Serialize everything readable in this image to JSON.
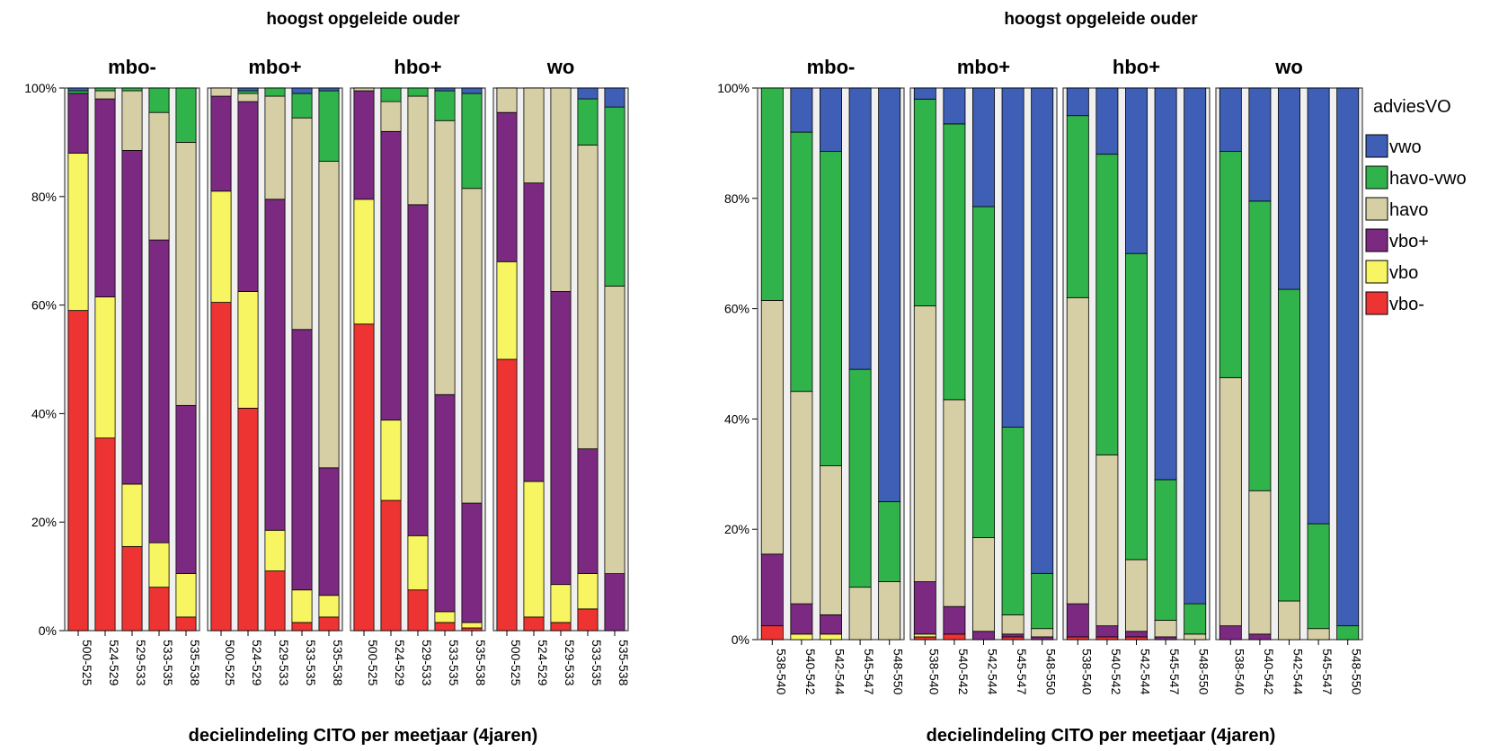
{
  "legend": {
    "title": "adviesVO",
    "colors": {
      "vwo": "#3e5fb5",
      "havo-vwo": "#31b34b",
      "havo": "#d6cfa5",
      "vbo+": "#7c2a81",
      "vbo": "#f7f562",
      "vbo-": "#ee3333"
    }
  },
  "chart_data": [
    {
      "type": "bar",
      "stacked": true,
      "title": "hoogst opgeleide ouder",
      "xlabel": "decielindeling CITO per meetjaar (4jaren)",
      "ylabel": "",
      "ylim": [
        0,
        100
      ],
      "yticks": [
        "0%",
        "20%",
        "40%",
        "60%",
        "80%",
        "100%"
      ],
      "categories": [
        "500-525",
        "524-529",
        "529-533",
        "533-535",
        "535-538"
      ],
      "stack_order": [
        "vbo-",
        "vbo",
        "vbo+",
        "havo",
        "havo-vwo",
        "vwo"
      ],
      "panels": [
        {
          "name": "mbo-",
          "bars": [
            {
              "vbo-": 59,
              "vbo": 29,
              "vbo+": 11,
              "havo": 0,
              "havo-vwo": 0.5,
              "vwo": 0.5
            },
            {
              "vbo-": 35.5,
              "vbo": 26,
              "vbo+": 36.5,
              "havo": 1.5,
              "havo-vwo": 0.5,
              "vwo": 0
            },
            {
              "vbo-": 15.5,
              "vbo": 11.5,
              "vbo+": 61.5,
              "havo": 11,
              "havo-vwo": 0.5,
              "vwo": 0
            },
            {
              "vbo-": 8,
              "vbo": 8.2,
              "vbo+": 55.8,
              "havo": 23.5,
              "havo-vwo": 4.5,
              "vwo": 0
            },
            {
              "vbo-": 2.5,
              "vbo": 8,
              "vbo+": 31,
              "havo": 48.5,
              "havo-vwo": 10,
              "vwo": 0
            }
          ]
        },
        {
          "name": "mbo+",
          "bars": [
            {
              "vbo-": 60.5,
              "vbo": 20.5,
              "vbo+": 17.5,
              "havo": 1.5,
              "havo-vwo": 0,
              "vwo": 0
            },
            {
              "vbo-": 41,
              "vbo": 21.5,
              "vbo+": 35,
              "havo": 1.5,
              "havo-vwo": 0.5,
              "vwo": 0.5
            },
            {
              "vbo-": 11,
              "vbo": 7.5,
              "vbo+": 61,
              "havo": 19,
              "havo-vwo": 1.5,
              "vwo": 0
            },
            {
              "vbo-": 1.5,
              "vbo": 6,
              "vbo+": 48,
              "havo": 39,
              "havo-vwo": 4.5,
              "vwo": 1
            },
            {
              "vbo-": 2.5,
              "vbo": 4,
              "vbo+": 23.5,
              "havo": 56.5,
              "havo-vwo": 13,
              "vwo": 0.5
            }
          ]
        },
        {
          "name": "hbo+",
          "bars": [
            {
              "vbo-": 56.5,
              "vbo": 23,
              "vbo+": 20,
              "havo": 0.5,
              "havo-vwo": 0,
              "vwo": 0
            },
            {
              "vbo-": 24,
              "vbo": 14.8,
              "vbo+": 53.2,
              "havo": 5.5,
              "havo-vwo": 2.5,
              "vwo": 0
            },
            {
              "vbo-": 7.5,
              "vbo": 10,
              "vbo+": 61,
              "havo": 20,
              "havo-vwo": 1.5,
              "vwo": 0
            },
            {
              "vbo-": 1.5,
              "vbo": 2,
              "vbo+": 40,
              "havo": 50.5,
              "havo-vwo": 5.5,
              "vwo": 0.5
            },
            {
              "vbo-": 0.5,
              "vbo": 1,
              "vbo+": 22,
              "havo": 58,
              "havo-vwo": 17.5,
              "vwo": 1
            }
          ]
        },
        {
          "name": "wo",
          "bars": [
            {
              "vbo-": 50,
              "vbo": 18,
              "vbo+": 27.5,
              "havo": 4.5,
              "havo-vwo": 0,
              "vwo": 0
            },
            {
              "vbo-": 2.5,
              "vbo": 25,
              "vbo+": 55,
              "havo": 17.5,
              "havo-vwo": 0,
              "vwo": 0
            },
            {
              "vbo-": 1.5,
              "vbo": 7,
              "vbo+": 54,
              "havo": 37.5,
              "havo-vwo": 0,
              "vwo": 0
            },
            {
              "vbo-": 4,
              "vbo": 6.5,
              "vbo+": 23,
              "havo": 56,
              "havo-vwo": 8.5,
              "vwo": 2
            },
            {
              "vbo-": 0,
              "vbo": 0,
              "vbo+": 10.5,
              "havo": 53,
              "havo-vwo": 33,
              "vwo": 3.5
            }
          ]
        }
      ]
    },
    {
      "type": "bar",
      "stacked": true,
      "title": "hoogst opgeleide ouder",
      "xlabel": "decielindeling CITO per meetjaar (4jaren)",
      "ylabel": "",
      "ylim": [
        0,
        100
      ],
      "yticks": [
        "0%",
        "20%",
        "40%",
        "60%",
        "80%",
        "100%"
      ],
      "categories": [
        "538-540",
        "540-542",
        "542-544",
        "545-547",
        "548-550"
      ],
      "stack_order": [
        "vbo-",
        "vbo",
        "vbo+",
        "havo",
        "havo-vwo",
        "vwo"
      ],
      "panels": [
        {
          "name": "mbo-",
          "bars": [
            {
              "vbo-": 2.5,
              "vbo": 0,
              "vbo+": 13,
              "havo": 46,
              "havo-vwo": 38.5,
              "vwo": 0
            },
            {
              "vbo-": 0,
              "vbo": 1,
              "vbo+": 5.5,
              "havo": 38.5,
              "havo-vwo": 47,
              "vwo": 8
            },
            {
              "vbo-": 0,
              "vbo": 1,
              "vbo+": 3.5,
              "havo": 27,
              "havo-vwo": 57,
              "vwo": 11.5
            },
            {
              "vbo-": 0,
              "vbo": 0,
              "vbo+": 0,
              "havo": 9.5,
              "havo-vwo": 39.5,
              "vwo": 51
            },
            {
              "vbo-": 0,
              "vbo": 0,
              "vbo+": 0,
              "havo": 10.5,
              "havo-vwo": 14.5,
              "vwo": 75
            }
          ]
        },
        {
          "name": "mbo+",
          "bars": [
            {
              "vbo-": 0.5,
              "vbo": 0.5,
              "vbo+": 9.5,
              "havo": 50,
              "havo-vwo": 37.5,
              "vwo": 2
            },
            {
              "vbo-": 1,
              "vbo": 0,
              "vbo+": 5,
              "havo": 37.5,
              "havo-vwo": 50,
              "vwo": 6.5
            },
            {
              "vbo-": 0,
              "vbo": 0,
              "vbo+": 1.5,
              "havo": 17,
              "havo-vwo": 60,
              "vwo": 21.5
            },
            {
              "vbo-": 0.5,
              "vbo": 0,
              "vbo+": 0.5,
              "havo": 3.5,
              "havo-vwo": 34,
              "vwo": 61.5
            },
            {
              "vbo-": 0,
              "vbo": 0,
              "vbo+": 0.5,
              "havo": 1.5,
              "havo-vwo": 10,
              "vwo": 88
            }
          ]
        },
        {
          "name": "hbo+",
          "bars": [
            {
              "vbo-": 0.5,
              "vbo": 0,
              "vbo+": 6,
              "havo": 55.5,
              "havo-vwo": 33,
              "vwo": 5
            },
            {
              "vbo-": 0.5,
              "vbo": 0,
              "vbo+": 2,
              "havo": 31,
              "havo-vwo": 54.5,
              "vwo": 12
            },
            {
              "vbo-": 0.5,
              "vbo": 0,
              "vbo+": 1,
              "havo": 13,
              "havo-vwo": 55.5,
              "vwo": 30
            },
            {
              "vbo-": 0,
              "vbo": 0,
              "vbo+": 0.5,
              "havo": 3,
              "havo-vwo": 25.5,
              "vwo": 71
            },
            {
              "vbo-": 0,
              "vbo": 0,
              "vbo+": 0,
              "havo": 1,
              "havo-vwo": 5.5,
              "vwo": 93.5
            }
          ]
        },
        {
          "name": "wo",
          "bars": [
            {
              "vbo-": 0,
              "vbo": 0,
              "vbo+": 2.5,
              "havo": 45,
              "havo-vwo": 41,
              "vwo": 11.5
            },
            {
              "vbo-": 0,
              "vbo": 0,
              "vbo+": 1,
              "havo": 26,
              "havo-vwo": 52.5,
              "vwo": 20.5
            },
            {
              "vbo-": 0,
              "vbo": 0,
              "vbo+": 0,
              "havo": 7,
              "havo-vwo": 56.5,
              "vwo": 36.5
            },
            {
              "vbo-": 0,
              "vbo": 0,
              "vbo+": 0,
              "havo": 2,
              "havo-vwo": 19,
              "vwo": 79
            },
            {
              "vbo-": 0,
              "vbo": 0,
              "vbo+": 0,
              "havo": 0,
              "havo-vwo": 2.5,
              "vwo": 97.5
            }
          ]
        }
      ]
    }
  ]
}
